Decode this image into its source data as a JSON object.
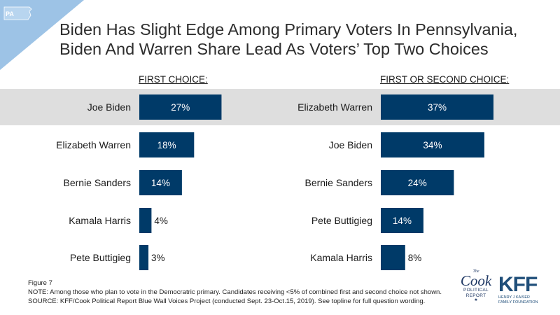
{
  "state_badge": "PA",
  "title": {
    "line1": "Biden Has Slight Edge Among Primary Voters In Pennsylvania,",
    "line2": "Biden And Warren Share Lead As Voters’ Top Two Choices"
  },
  "chart_data": [
    {
      "type": "bar",
      "orientation": "horizontal",
      "title": "FIRST CHOICE:",
      "categories": [
        "Joe Biden",
        "Elizabeth Warren",
        "Bernie Sanders",
        "Kamala Harris",
        "Pete Buttigieg"
      ],
      "values": [
        27,
        18,
        14,
        4,
        3
      ],
      "value_labels": [
        "27%",
        "18%",
        "14%",
        "4%",
        "3%"
      ],
      "highlighted_category": "Joe Biden",
      "bar_color": "#003a68"
    },
    {
      "type": "bar",
      "orientation": "horizontal",
      "title": "FIRST OR SECOND CHOICE:",
      "categories": [
        "Elizabeth Warren",
        "Joe Biden",
        "Bernie Sanders",
        "Pete Buttigieg",
        "Kamala Harris"
      ],
      "values": [
        37,
        34,
        24,
        14,
        8
      ],
      "value_labels": [
        "37%",
        "34%",
        "24%",
        "14%",
        "8%"
      ],
      "highlighted_category": "Elizabeth Warren",
      "bar_color": "#003a68"
    }
  ],
  "footer": {
    "figure": "Figure 7",
    "note": "NOTE: Among those who plan to vote in the Democratric primary. Candidates receiving <5% of combined first and second choice not shown.",
    "source": "SOURCE: KFF/Cook Political Report Blue Wall Voices Project (conducted Sept. 23-Oct.15, 2019). See topline for full question wording."
  },
  "logos": {
    "cook": {
      "the": "The",
      "name": "Cook",
      "line1": "POLITICAL",
      "line2": "REPORT",
      "star": "★"
    },
    "kff": {
      "name": "KFF",
      "line1": "HENRY J KAISER",
      "line2": "FAMILY FOUNDATION"
    }
  },
  "colors": {
    "bar": "#003a68",
    "highlight_band": "#dedede",
    "corner_triangle": "#9dc3e6",
    "logo_navy": "#1f3864"
  }
}
